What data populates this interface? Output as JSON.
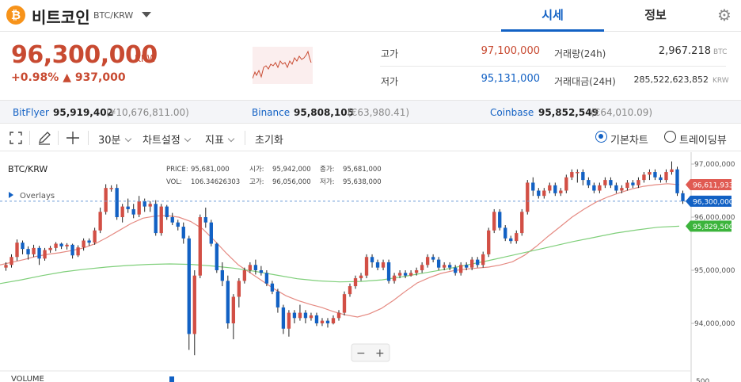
{
  "header": {
    "coin_symbol": "₿",
    "coin_name": "비트코인",
    "pair": "BTC/KRW",
    "tabs": [
      {
        "label": "시세",
        "active": true
      },
      {
        "label": "정보",
        "active": false
      }
    ]
  },
  "summary": {
    "price": "96,300,000",
    "unit": "KRW",
    "change_pct": "+0.98%",
    "change_amt": "▲ 937,000",
    "high_label": "고가",
    "high": "97,100,000",
    "low_label": "저가",
    "low": "95,131,000",
    "volume_label": "거래량(24h)",
    "volume": "2,967.218",
    "volume_unit": "BTC",
    "value_label": "거래대금(24H)",
    "value": "285,522,623,852",
    "value_unit": "KRW"
  },
  "exchanges": [
    {
      "name": "BitFlyer",
      "price": "95,919,402",
      "foreign": "(¥10,676,811.00)"
    },
    {
      "name": "Binance",
      "price": "95,808,105",
      "foreign": "(€63,980.41)"
    },
    {
      "name": "Coinbase",
      "price": "95,852,549",
      "foreign": "(€64,010.09)"
    }
  ],
  "toolbar": {
    "interval": "30분",
    "chart_settings": "차트설정",
    "indicators": "지표",
    "reset": "초기화",
    "basic_chart": "기본차트",
    "tradingview": "트레이딩뷰"
  },
  "chart_info": {
    "symbol": "BTC/KRW",
    "overlays": "Overlays",
    "price_label": "PRICE:",
    "price": "95,681,000",
    "open_label": "시가:",
    "open": "95,942,000",
    "close_label": "종가:",
    "close": "95,681,000",
    "vol_label": "VOL:",
    "vol": "106.34626303",
    "high_label": "고가:",
    "high": "96,056,000",
    "low_label": "저가:",
    "low": "95,638,000",
    "volume_title": "VOLUME",
    "zoom_out": "−",
    "zoom_in": "+"
  },
  "axis": {
    "ticks": [
      "97,000,000",
      "96,000,000",
      "95,000,000",
      "94,000,000"
    ],
    "tick_values": [
      97000000,
      96000000,
      95000000,
      94000000
    ],
    "bottom_tick": "500",
    "ma_short_tag": "96,611,933",
    "ma_long_tag": "95,829,500",
    "current_tag": "96,300,000"
  },
  "colors": {
    "up": "#d24f45",
    "down": "#1261c4",
    "ma_short": "#e58a82",
    "ma_long": "#7fcf7a",
    "accent": "#1261c4"
  },
  "chart_data": {
    "type": "line",
    "title": "BTC/KRW",
    "y_range": [
      93000000,
      97200000
    ],
    "candles": [
      [
        95050000,
        95100000,
        95150000,
        94990000
      ],
      [
        95100000,
        95250000,
        95300000,
        95050000
      ],
      [
        95250000,
        95520000,
        95580000,
        95180000
      ],
      [
        95520000,
        95400000,
        95560000,
        95300000
      ],
      [
        95400000,
        95300000,
        95450000,
        95200000
      ],
      [
        95300000,
        95420000,
        95480000,
        95250000
      ],
      [
        95420000,
        95220000,
        95460000,
        95100000
      ],
      [
        95220000,
        95380000,
        95420000,
        95180000
      ],
      [
        95380000,
        95420000,
        95460000,
        95330000
      ],
      [
        95420000,
        95500000,
        95530000,
        95360000
      ],
      [
        95500000,
        95450000,
        95520000,
        95400000
      ],
      [
        95450000,
        95480000,
        95510000,
        95390000
      ],
      [
        95480000,
        95280000,
        95500000,
        95220000
      ],
      [
        95280000,
        95430000,
        95470000,
        95250000
      ],
      [
        95430000,
        95560000,
        95600000,
        95370000
      ],
      [
        95560000,
        95520000,
        95600000,
        95460000
      ],
      [
        95520000,
        95750000,
        95800000,
        95480000
      ],
      [
        95750000,
        96100000,
        96180000,
        95700000
      ],
      [
        96100000,
        96550000,
        96620000,
        96050000
      ],
      [
        96550000,
        96550000,
        96600000,
        96480000
      ],
      [
        96550000,
        96000000,
        96620000,
        95950000
      ],
      [
        96000000,
        96200000,
        96250000,
        95900000
      ],
      [
        96200000,
        96150000,
        96350000,
        96080000
      ],
      [
        96150000,
        96050000,
        96250000,
        95980000
      ],
      [
        96050000,
        96300000,
        96400000,
        96000000
      ],
      [
        96300000,
        96200000,
        96350000,
        96100000
      ],
      [
        96200000,
        96250000,
        96300000,
        96100000
      ],
      [
        96250000,
        95700000,
        96320000,
        95650000
      ],
      [
        95700000,
        96200000,
        96250000,
        95650000
      ],
      [
        96200000,
        96000000,
        96230000,
        95950000
      ],
      [
        96000000,
        95900000,
        96080000,
        95850000
      ],
      [
        95900000,
        95820000,
        95950000,
        95750000
      ],
      [
        95820000,
        95600000,
        95900000,
        95500000
      ],
      [
        95600000,
        93800000,
        95650000,
        93500000
      ],
      [
        93800000,
        94900000,
        95000000,
        93400000
      ],
      [
        94900000,
        96000000,
        96050000,
        94850000
      ],
      [
        96000000,
        95900000,
        96180000,
        95800000
      ],
      [
        95900000,
        95500000,
        95950000,
        95450000
      ],
      [
        95500000,
        95000000,
        95520000,
        94950000
      ],
      [
        95000000,
        94800000,
        95150000,
        94700000
      ],
      [
        94800000,
        94000000,
        94900000,
        93900000
      ],
      [
        94000000,
        94500000,
        94550000,
        93700000
      ],
      [
        94500000,
        94800000,
        94850000,
        94300000
      ],
      [
        94800000,
        95000000,
        95050000,
        94750000
      ],
      [
        95000000,
        95100000,
        95150000,
        94950000
      ],
      [
        95100000,
        95000000,
        95200000,
        94920000
      ],
      [
        95000000,
        94950000,
        95080000,
        94900000
      ],
      [
        94950000,
        94750000,
        95000000,
        94700000
      ],
      [
        94750000,
        94600000,
        94800000,
        94550000
      ],
      [
        94600000,
        94300000,
        94650000,
        94200000
      ],
      [
        94300000,
        93900000,
        94350000,
        93800000
      ],
      [
        93900000,
        94200000,
        94250000,
        93750000
      ],
      [
        94200000,
        94100000,
        94250000,
        94000000
      ],
      [
        94100000,
        94200000,
        94350000,
        94050000
      ],
      [
        94200000,
        94100000,
        94250000,
        94000000
      ],
      [
        94100000,
        94150000,
        94200000,
        94050000
      ],
      [
        94150000,
        94000000,
        94200000,
        93950000
      ],
      [
        94000000,
        94050000,
        94100000,
        93950000
      ],
      [
        94050000,
        94000000,
        94100000,
        93920000
      ],
      [
        94000000,
        94100000,
        94150000,
        93980000
      ],
      [
        94100000,
        94200000,
        94250000,
        94050000
      ],
      [
        94200000,
        94550000,
        94600000,
        94150000
      ],
      [
        94550000,
        94700000,
        94750000,
        94500000
      ],
      [
        94700000,
        94850000,
        94900000,
        94650000
      ],
      [
        94850000,
        94900000,
        94950000,
        94800000
      ],
      [
        94900000,
        95250000,
        95300000,
        94850000
      ],
      [
        95250000,
        95150000,
        95300000,
        95050000
      ],
      [
        95150000,
        95050000,
        95200000,
        95000000
      ],
      [
        95050000,
        95150000,
        95200000,
        95000000
      ],
      [
        95150000,
        94800000,
        95200000,
        94750000
      ],
      [
        94800000,
        94900000,
        94950000,
        94750000
      ],
      [
        94900000,
        94950000,
        95000000,
        94850000
      ],
      [
        94950000,
        94900000,
        95000000,
        94850000
      ],
      [
        94900000,
        94950000,
        95000000,
        94880000
      ],
      [
        94950000,
        95000000,
        95050000,
        94900000
      ],
      [
        95000000,
        95100000,
        95150000,
        94950000
      ],
      [
        95100000,
        95250000,
        95300000,
        95050000
      ],
      [
        95250000,
        95200000,
        95300000,
        95150000
      ],
      [
        95200000,
        95050000,
        95250000,
        95000000
      ],
      [
        95050000,
        95100000,
        95150000,
        95000000
      ],
      [
        95100000,
        95050000,
        95150000,
        95000000
      ],
      [
        95050000,
        94950000,
        95100000,
        94900000
      ],
      [
        94950000,
        95100000,
        95150000,
        94900000
      ],
      [
        95100000,
        95050000,
        95150000,
        95000000
      ],
      [
        95050000,
        95200000,
        95250000,
        95000000
      ],
      [
        95200000,
        95100000,
        95250000,
        95050000
      ],
      [
        95100000,
        95300000,
        95350000,
        95050000
      ],
      [
        95300000,
        95750000,
        95800000,
        95250000
      ],
      [
        95750000,
        96100000,
        96150000,
        95700000
      ],
      [
        96100000,
        95800000,
        96150000,
        95750000
      ],
      [
        95800000,
        95600000,
        95850000,
        95550000
      ],
      [
        95600000,
        95550000,
        95650000,
        95500000
      ],
      [
        95550000,
        95700000,
        95750000,
        95500000
      ],
      [
        95700000,
        96100000,
        96150000,
        95650000
      ],
      [
        96100000,
        96650000,
        96700000,
        96050000
      ],
      [
        96650000,
        96500000,
        96750000,
        96400000
      ],
      [
        96500000,
        96400000,
        96550000,
        96350000
      ],
      [
        96400000,
        96500000,
        96550000,
        96350000
      ],
      [
        96500000,
        96600000,
        96650000,
        96450000
      ],
      [
        96600000,
        96450000,
        96650000,
        96400000
      ],
      [
        96450000,
        96500000,
        96550000,
        96400000
      ],
      [
        96500000,
        96750000,
        96800000,
        96450000
      ],
      [
        96750000,
        96850000,
        96900000,
        96700000
      ],
      [
        96850000,
        96850000,
        96900000,
        96650000
      ],
      [
        96850000,
        96700000,
        96900000,
        96600000
      ],
      [
        96700000,
        96600000,
        96750000,
        96550000
      ],
      [
        96600000,
        96500000,
        96650000,
        96450000
      ],
      [
        96500000,
        96600000,
        96650000,
        96450000
      ],
      [
        96600000,
        96700000,
        96750000,
        96550000
      ],
      [
        96700000,
        96600000,
        96750000,
        96550000
      ],
      [
        96600000,
        96500000,
        96650000,
        96450000
      ],
      [
        96500000,
        96550000,
        96600000,
        96450000
      ],
      [
        96550000,
        96650000,
        96700000,
        96500000
      ],
      [
        96650000,
        96600000,
        96700000,
        96550000
      ],
      [
        96600000,
        96700000,
        96750000,
        96550000
      ],
      [
        96700000,
        96800000,
        96850000,
        96650000
      ],
      [
        96800000,
        96850000,
        96900000,
        96700000
      ],
      [
        96850000,
        96750000,
        96900000,
        96700000
      ],
      [
        96750000,
        96700000,
        96800000,
        96650000
      ],
      [
        96700000,
        96850000,
        96900000,
        96650000
      ],
      [
        96850000,
        96900000,
        97050000,
        96800000
      ],
      [
        96900000,
        96450000,
        96950000,
        96400000
      ],
      [
        96450000,
        96300000,
        96500000,
        96250000
      ]
    ],
    "ma_short": [
      95100000,
      95150000,
      95200000,
      95260000,
      95300000,
      95330000,
      95370000,
      95420000,
      95500000,
      95620000,
      95750000,
      95880000,
      95980000,
      96020000,
      96030000,
      96000000,
      95920000,
      95780000,
      95560000,
      95320000,
      95100000,
      94950000,
      94800000,
      94650000,
      94520000,
      94430000,
      94360000,
      94300000,
      94220000,
      94160000,
      94120000,
      94180000,
      94280000,
      94430000,
      94600000,
      94760000,
      94860000,
      94940000,
      94990000,
      95020000,
      95040000,
      95060000,
      95100000,
      95160000,
      95280000,
      95450000,
      95640000,
      95820000,
      96000000,
      96150000,
      96280000,
      96380000,
      96460000,
      96530000,
      96580000,
      96610000,
      96630000,
      96611933
    ],
    "ma_long": [
      94750000,
      94820000,
      94900000,
      94970000,
      95020000,
      95060000,
      95090000,
      95110000,
      95120000,
      95110000,
      95080000,
      95040000,
      94980000,
      94910000,
      94840000,
      94800000,
      94780000,
      94790000,
      94820000,
      94880000,
      94950000,
      95020000,
      95100000,
      95180000,
      95270000,
      95360000,
      95450000,
      95540000,
      95620000,
      95700000,
      95760000,
      95810000,
      95829500
    ]
  }
}
